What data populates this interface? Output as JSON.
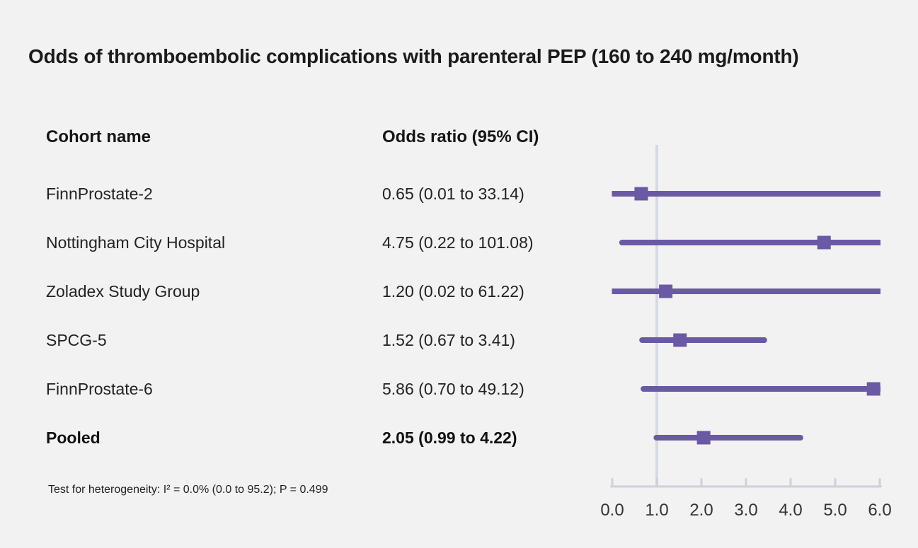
{
  "title": "Odds of thromboembolic complications with parenteral PEP (160 to 240 mg/month)",
  "columns": {
    "cohort": "Cohort name",
    "odds_ratio": "Odds ratio (95% CI)"
  },
  "footnote": "Test for heterogeneity: I² = 0.0% (0.0 to 95.2); P = 0.499",
  "chart_data": {
    "type": "forest",
    "title": "Odds of thromboembolic complications with parenteral PEP (160 to 240 mg/month)",
    "xlabel": "",
    "xlim": [
      0,
      6
    ],
    "ref_line": 1.0,
    "grid": false,
    "xticks": [
      0,
      1,
      2,
      3,
      4,
      5,
      6
    ],
    "xtick_labels": [
      "0.0",
      "1.0",
      "2.0",
      "3.0",
      "4.0",
      "5.0",
      "6.0"
    ],
    "rows": [
      {
        "label": "FinnProstate-2",
        "or_text": "0.65 (0.01 to 33.14)",
        "or": 0.65,
        "lo": 0.01,
        "hi": 33.14,
        "bold": false
      },
      {
        "label": "Nottingham City Hospital",
        "or_text": "4.75 (0.22 to 101.08)",
        "or": 4.75,
        "lo": 0.22,
        "hi": 101.08,
        "bold": false
      },
      {
        "label": "Zoladex Study Group",
        "or_text": "1.20 (0.02 to 61.22)",
        "or": 1.2,
        "lo": 0.02,
        "hi": 61.22,
        "bold": false
      },
      {
        "label": "SPCG-5",
        "or_text": "1.52 (0.67 to 3.41)",
        "or": 1.52,
        "lo": 0.67,
        "hi": 3.41,
        "bold": false
      },
      {
        "label": "FinnProstate-6",
        "or_text": "5.86 (0.70 to 49.12)",
        "or": 5.86,
        "lo": 0.7,
        "hi": 49.12,
        "bold": false
      },
      {
        "label": "Pooled",
        "or_text": "2.05 (0.99 to 4.22)",
        "or": 2.05,
        "lo": 0.99,
        "hi": 4.22,
        "bold": true
      }
    ],
    "colors": {
      "marker": "#6a59a5",
      "axis": "#cbd2dc",
      "ref_line": "#d5dae3",
      "background": "#f2f2f2",
      "text": "#222222"
    }
  }
}
